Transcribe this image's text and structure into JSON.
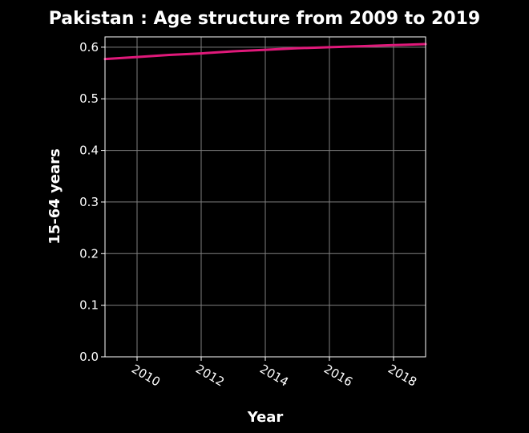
{
  "chart_data": {
    "type": "line",
    "title": "Pakistan : Age structure from 2009 to 2019",
    "xlabel": "Year",
    "ylabel": "15-64 years",
    "xlim": [
      2009,
      2019
    ],
    "ylim": [
      0,
      0.62
    ],
    "x_ticks": [
      2010,
      2012,
      2014,
      2016,
      2018
    ],
    "x_tick_labels": [
      "2010",
      "2012",
      "2014",
      "2016",
      "2018"
    ],
    "y_ticks": [
      0,
      0.1,
      0.2,
      0.3,
      0.4,
      0.5,
      0.6
    ],
    "y_tick_labels": [
      "0.0",
      "0.1",
      "0.2",
      "0.3",
      "0.4",
      "0.5",
      "0.6"
    ],
    "grid": true,
    "legend": "none",
    "series": [
      {
        "color": "#e0197a",
        "x": [
          2009,
          2010,
          2011,
          2012,
          2013,
          2014,
          2015,
          2016,
          2017,
          2018,
          2019
        ],
        "values": [
          0.577,
          0.581,
          0.585,
          0.588,
          0.592,
          0.595,
          0.598,
          0.6,
          0.602,
          0.604,
          0.606
        ]
      }
    ],
    "colors": {
      "background": "#000000",
      "grid": "#7f7f7f",
      "text": "#ffffff"
    }
  }
}
